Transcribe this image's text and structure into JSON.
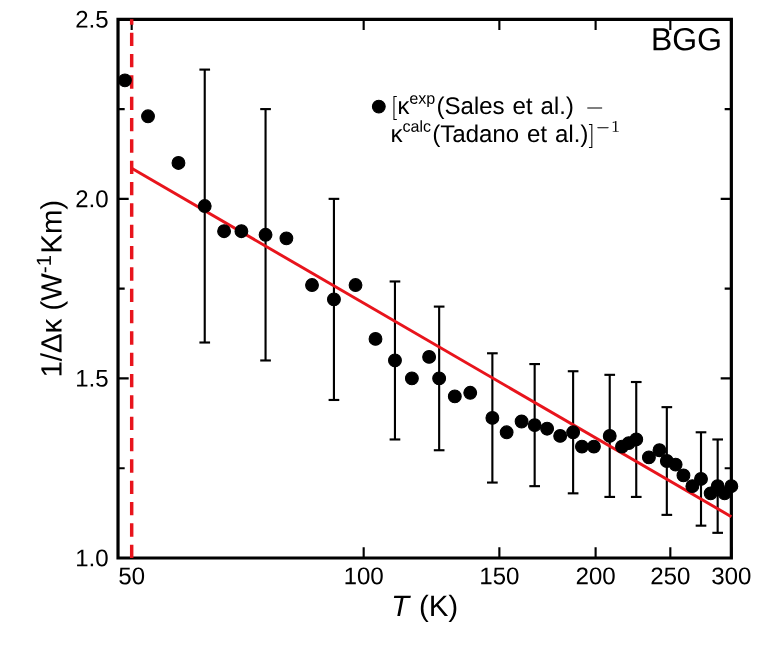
{
  "chart_data": {
    "type": "scatter",
    "xlabel": "*T* (K)",
    "ylabel": "1/Δκ (W$^{-1}$Km)",
    "annotations": [
      "BGG"
    ],
    "log": "x",
    "xlim": [
      48,
      300
    ],
    "xticks": [
      50,
      100,
      150,
      200,
      250,
      300
    ],
    "ylim": [
      1.0,
      2.5
    ],
    "yticks": [
      {
        "value": 1.0,
        "label": "1.0"
      },
      {
        "value": 1.5,
        "label": "1.5"
      },
      {
        "value": 2.0,
        "label": "2.0"
      },
      {
        "value": 2.5,
        "label": "2.5"
      }
    ],
    "grid": false,
    "legend": "top right",
    "series": [
      {
        "marker": "circle",
        "name": "[\\text{κ}^{\\text{exp}}\\text{(Sales et al.)} - \\text{κ}^{\\text{calc}}\\text{(Tadano et al.)}]^{-1}",
        "color": "#000000",
        "x": [
          49,
          52.5,
          57.5,
          62.2,
          65.9,
          69.4,
          74.6,
          79.4,
          85.7,
          91.5,
          97.6,
          103.6,
          109.8,
          115.5,
          121.6,
          125.3,
          131.3,
          137.5,
          146.9,
          153.3,
          160.3,
          166.7,
          173,
          179.9,
          187,
          192,
          199,
          208.6,
          216.4,
          220.8,
          225.8,
          234.5,
          242,
          247.4,
          254,
          260,
          267,
          274,
          282,
          288,
          294,
          300
        ],
        "values": [
          2.33,
          2.23,
          2.1,
          1.98,
          1.91,
          1.91,
          1.9,
          1.89,
          1.76,
          1.72,
          1.76,
          1.61,
          1.55,
          1.5,
          1.56,
          1.5,
          1.45,
          1.46,
          1.39,
          1.35,
          1.38,
          1.37,
          1.36,
          1.34,
          1.35,
          1.31,
          1.31,
          1.34,
          1.31,
          1.32,
          1.33,
          1.28,
          1.3,
          1.27,
          1.26,
          1.23,
          1.2,
          1.22,
          1.18,
          1.2,
          1.18,
          1.2
        ],
        "errors": [
          null,
          null,
          null,
          0.38,
          null,
          null,
          0.35,
          null,
          null,
          0.28,
          null,
          null,
          0.22,
          null,
          null,
          0.2,
          null,
          null,
          0.18,
          null,
          null,
          0.17,
          null,
          null,
          0.17,
          null,
          null,
          0.17,
          null,
          null,
          0.16,
          null,
          null,
          0.15,
          null,
          null,
          null,
          0.13,
          null,
          0.13,
          null,
          null
        ]
      },
      {
        "type": "line",
        "color": "#e8141c",
        "x": [
          50,
          300
        ],
        "values": [
          2.085,
          1.115
        ],
        "line_style": "solid",
        "marker": "none"
      }
    ],
    "ref_lines": [
      {
        "axis": "x",
        "value": 50,
        "color": "#e8141c",
        "line_style": "dashed"
      }
    ]
  }
}
